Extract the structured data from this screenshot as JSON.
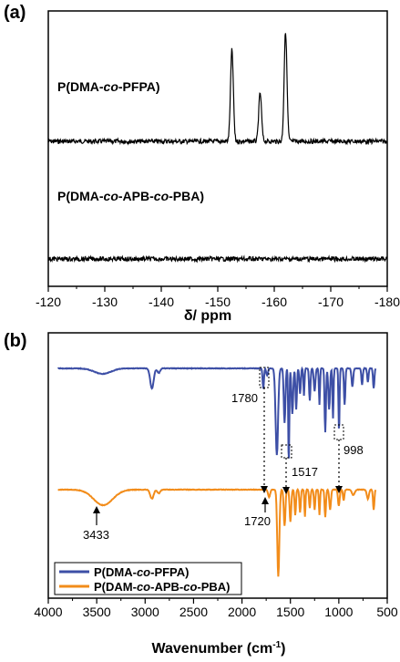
{
  "chart_data": [
    {
      "panel": "(a)",
      "type": "line",
      "xlabel": "δ/ ppm",
      "x_ticks": [
        "-120",
        "-130",
        "-140",
        "-150",
        "-160",
        "-170",
        "-180"
      ],
      "xlim": [
        -120,
        -180
      ],
      "y_ticks": false,
      "series": [
        {
          "name": "P(DMA-co-PFPA)",
          "label_prefix": "P(DMA-",
          "label_italic": "co",
          "label_suffix": "-PFPA)",
          "color": "#000000",
          "baseline": "flat with noise",
          "peaks": [
            {
              "x": -152.5,
              "height": 1.0
            },
            {
              "x": -157.5,
              "height": 0.53
            },
            {
              "x": -162.0,
              "height": 1.2
            }
          ]
        },
        {
          "name": "P(DMA-co-APB-co-PBA)",
          "label_prefix": "P(DMA-",
          "label_italic": "co",
          "label_mid": "-APB-",
          "label_italic2": "co",
          "label_suffix": "-PBA)",
          "color": "#000000",
          "baseline": "flat with noise",
          "peaks": []
        }
      ]
    },
    {
      "panel": "(b)",
      "type": "line",
      "xlabel": "Wavenumber (cm",
      "xlabel_sup": "-1",
      "xlabel_end": ")",
      "x_ticks": [
        "4000",
        "3500",
        "3000",
        "2500",
        "2000",
        "1500",
        "1000",
        "500"
      ],
      "xlim": [
        4000,
        500
      ],
      "y_ticks": false,
      "legend_position": "bottom-left",
      "series": [
        {
          "name": "P(DMA-co-PFPA)",
          "label_prefix": "P(DMA-",
          "label_italic": "co",
          "label_suffix": "-PFPA)",
          "color": "#3d4fa6"
        },
        {
          "name": "P(DAM-co-APB-co-PBA)",
          "label_prefix": "P(DAM-",
          "label_italic": "co",
          "label_mid": "-APB-",
          "label_italic2": "co",
          "label_suffix": "-PBA)",
          "color": "#f28c1a"
        }
      ],
      "annotations": [
        "1780",
        "1517",
        "998",
        "3433",
        "1720"
      ]
    }
  ]
}
